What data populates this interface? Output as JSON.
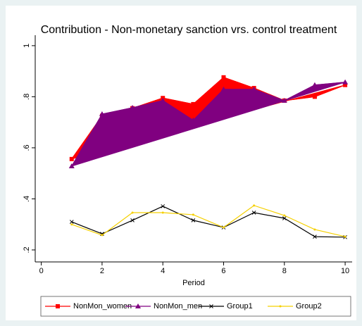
{
  "chart_data": {
    "type": "line",
    "title": "Contribution - Non-monetary sanction vrs. control treatment",
    "x_label": "Period",
    "x": [
      1,
      2,
      3,
      4,
      5,
      6,
      7,
      8,
      9,
      10
    ],
    "series": [
      {
        "name": "NonMon_women",
        "color": "#ff0000",
        "area": true,
        "marker": "square",
        "values": [
          0.556,
          0.725,
          0.755,
          0.795,
          0.771,
          0.876,
          0.834,
          0.785,
          0.8,
          0.846
        ]
      },
      {
        "name": "NonMon_men",
        "color": "#800080",
        "area": true,
        "marker": "triangle",
        "values": [
          0.528,
          0.732,
          0.757,
          0.785,
          0.708,
          0.829,
          0.829,
          0.785,
          0.846,
          0.857
        ]
      },
      {
        "name": "Group1",
        "color": "#000000",
        "area": false,
        "marker": "x",
        "values": [
          0.31,
          0.263,
          0.316,
          0.371,
          0.316,
          0.288,
          0.346,
          0.324,
          0.252,
          0.25
        ]
      },
      {
        "name": "Group2",
        "color": "#f5d000",
        "area": false,
        "marker": "dot",
        "values": [
          0.3,
          0.258,
          0.346,
          0.346,
          0.338,
          0.288,
          0.374,
          0.335,
          0.28,
          0.252
        ]
      }
    ],
    "xlim": [
      -0.2,
      10.23
    ],
    "ylim": [
      0.153,
      1.041
    ],
    "xticks": [
      0,
      2,
      4,
      6,
      8,
      10
    ],
    "yticks": [
      {
        "value": 0.2,
        "label": ".2"
      },
      {
        "value": 0.4,
        "label": ".4"
      },
      {
        "value": 0.6,
        "label": ".6"
      },
      {
        "value": 0.8,
        "label": ".8"
      },
      {
        "value": 1,
        "label": "1"
      }
    ],
    "legend": "bottom"
  }
}
